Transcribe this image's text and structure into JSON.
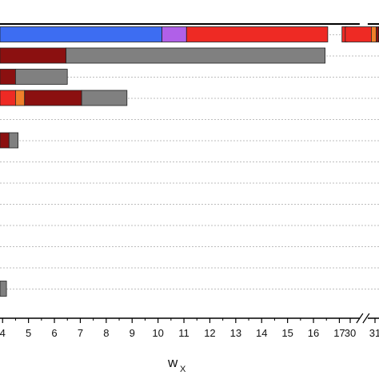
{
  "chart_data": {
    "type": "bar",
    "orientation": "horizontal-stacked",
    "xlabel": "w",
    "xlabel_subscript": "X",
    "x_axis_break": [
      17.6,
      29.6
    ],
    "x_range_visible": [
      3.9,
      31.8
    ],
    "x_ticks": [
      "4",
      "5",
      "6",
      "7",
      "8",
      "9",
      "10",
      "11",
      "12",
      "13",
      "14",
      "15",
      "16",
      "17",
      "30",
      "31"
    ],
    "grid": "dotted horizontal",
    "row_count": 13,
    "rows": [
      {
        "row": 0,
        "segments": [
          {
            "from": 3.9,
            "to": 10.15,
            "color": "#3d6df2"
          },
          {
            "from": 10.15,
            "to": 11.1,
            "color": "#b060e8"
          },
          {
            "from": 11.1,
            "to": 16.55,
            "color": "#ee2a24"
          },
          {
            "from": 17.1,
            "to": 17.3,
            "color": "#ee2a24"
          },
          {
            "from": 29.8,
            "to": 30.85,
            "color": "#ee2a24"
          },
          {
            "from": 30.85,
            "to": 31.05,
            "color": "#f07f2a"
          },
          {
            "from": 31.05,
            "to": 31.15,
            "color": "#8b1010"
          },
          {
            "from": 31.15,
            "to": 31.8,
            "color": "#808080"
          }
        ]
      },
      {
        "row": 1,
        "segments": [
          {
            "from": 3.9,
            "to": 6.45,
            "color": "#8b1010"
          },
          {
            "from": 6.45,
            "to": 16.45,
            "color": "#808080"
          }
        ]
      },
      {
        "row": 2,
        "segments": [
          {
            "from": 3.9,
            "to": 4.5,
            "color": "#8b1010"
          },
          {
            "from": 4.5,
            "to": 6.5,
            "color": "#808080"
          }
        ]
      },
      {
        "row": 3,
        "segments": [
          {
            "from": 3.9,
            "to": 4.5,
            "color": "#ee2a24"
          },
          {
            "from": 4.5,
            "to": 4.85,
            "color": "#f07f2a"
          },
          {
            "from": 4.85,
            "to": 7.05,
            "color": "#8b1010"
          },
          {
            "from": 7.05,
            "to": 8.8,
            "color": "#808080"
          }
        ]
      },
      {
        "row": 4,
        "segments": []
      },
      {
        "row": 5,
        "segments": [
          {
            "from": 3.9,
            "to": 4.25,
            "color": "#8b1010"
          },
          {
            "from": 4.25,
            "to": 4.6,
            "color": "#808080"
          }
        ]
      },
      {
        "row": 6,
        "segments": []
      },
      {
        "row": 7,
        "segments": []
      },
      {
        "row": 8,
        "segments": []
      },
      {
        "row": 9,
        "segments": []
      },
      {
        "row": 10,
        "segments": []
      },
      {
        "row": 11,
        "segments": []
      },
      {
        "row": 12,
        "segments": [
          {
            "from": 3.9,
            "to": 4.15,
            "color": "#808080"
          }
        ]
      }
    ]
  }
}
